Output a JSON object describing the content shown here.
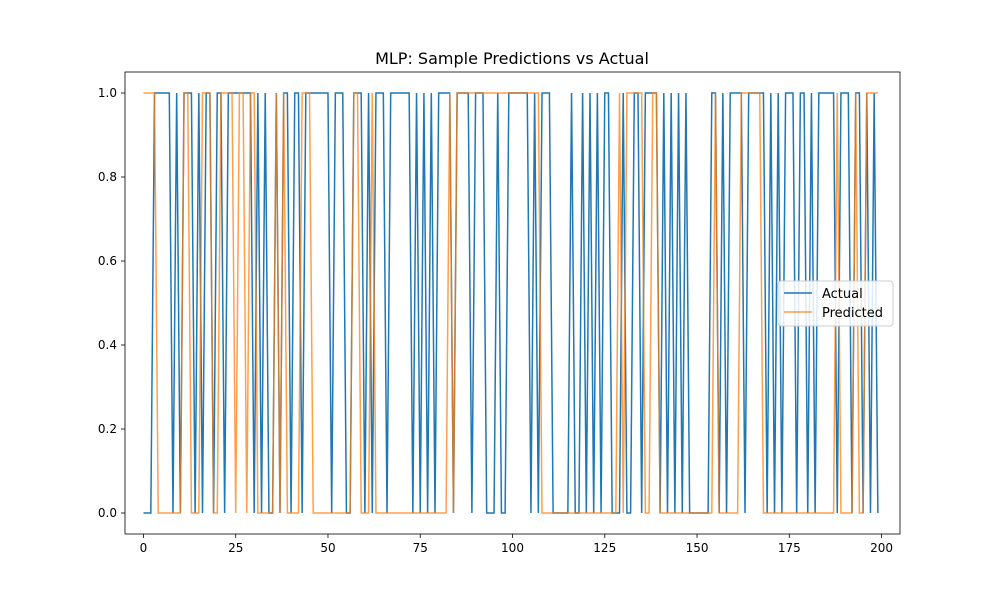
{
  "chart_data": {
    "type": "line",
    "title": "MLP: Sample Predictions vs Actual",
    "xlabel": "",
    "ylabel": "",
    "xlim": [
      -5,
      205
    ],
    "ylim": [
      -0.05,
      1.05
    ],
    "xticks": [
      0,
      25,
      50,
      75,
      100,
      125,
      150,
      175,
      200
    ],
    "yticks": [
      0.0,
      0.2,
      0.4,
      0.6,
      0.8,
      1.0
    ],
    "xtick_labels": [
      "0",
      "25",
      "50",
      "75",
      "100",
      "125",
      "150",
      "175",
      "200"
    ],
    "ytick_labels": [
      "0.0",
      "0.2",
      "0.4",
      "0.6",
      "0.8",
      "1.0"
    ],
    "grid": false,
    "legend": {
      "placement": "center-right",
      "entries": [
        "Actual",
        "Predicted"
      ]
    },
    "series": [
      {
        "name": "Actual",
        "color": "#1f77b4",
        "values": [
          0,
          0,
          0,
          1,
          1,
          1,
          1,
          1,
          0,
          1,
          0,
          1,
          1,
          1,
          0,
          1,
          0,
          1,
          1,
          0,
          1,
          1,
          0,
          1,
          1,
          1,
          1,
          1,
          1,
          1,
          0,
          1,
          0,
          1,
          0,
          0,
          1,
          0,
          1,
          1,
          0,
          1,
          1,
          0,
          1,
          1,
          1,
          1,
          1,
          1,
          1,
          0,
          1,
          1,
          1,
          0,
          0,
          1,
          1,
          1,
          0,
          1,
          0,
          1,
          1,
          1,
          0,
          1,
          1,
          1,
          1,
          1,
          1,
          0,
          1,
          0,
          1,
          0,
          1,
          0,
          1,
          1,
          1,
          1,
          0,
          1,
          1,
          1,
          1,
          0,
          1,
          1,
          1,
          0,
          0,
          0,
          1,
          0,
          0,
          1,
          1,
          1,
          1,
          1,
          1,
          0,
          1,
          0,
          1,
          1,
          1,
          0,
          0,
          0,
          0,
          0,
          1,
          0,
          0,
          1,
          0,
          1,
          0,
          1,
          0,
          1,
          1,
          0,
          0,
          0,
          1,
          0,
          0,
          1,
          1,
          0,
          1,
          1,
          1,
          1,
          0,
          1,
          0,
          1,
          0,
          1,
          0,
          1,
          0,
          0,
          0,
          0,
          0,
          0,
          1,
          1,
          0,
          1,
          0,
          1,
          1,
          1,
          1,
          0,
          1,
          1,
          1,
          1,
          1,
          0,
          1,
          0,
          1,
          0,
          1,
          1,
          1,
          0,
          1,
          1,
          0,
          1,
          0,
          1,
          1,
          1,
          1,
          1,
          0,
          1,
          1,
          1,
          0,
          1,
          1,
          0,
          1,
          0,
          1,
          0
        ]
      },
      {
        "name": "Predicted",
        "color": "#ff7f0e",
        "values": [
          1,
          1,
          1,
          1,
          0,
          0,
          0,
          0,
          0,
          0,
          0,
          1,
          1,
          0,
          0,
          0,
          1,
          1,
          1,
          0,
          0,
          1,
          1,
          1,
          1,
          0,
          1,
          1,
          0,
          1,
          1,
          0,
          0,
          0,
          0,
          0,
          1,
          0,
          1,
          0,
          0,
          0,
          0,
          1,
          1,
          1,
          0,
          0,
          0,
          0,
          0,
          0,
          0,
          0,
          0,
          0,
          0,
          1,
          1,
          0,
          0,
          0,
          1,
          0,
          0,
          0,
          0,
          0,
          0,
          0,
          0,
          0,
          0,
          0,
          0,
          0,
          0,
          0,
          0,
          0,
          0,
          0,
          0,
          1,
          0,
          1,
          1,
          1,
          1,
          1,
          1,
          1,
          1,
          1,
          1,
          1,
          1,
          1,
          1,
          1,
          1,
          1,
          1,
          1,
          1,
          1,
          1,
          1,
          0,
          0,
          0,
          0,
          0,
          0,
          0,
          0,
          0,
          0,
          0,
          0,
          0,
          0,
          0,
          0,
          0,
          0,
          0,
          0,
          0,
          1,
          0,
          1,
          1,
          1,
          1,
          1,
          0,
          0,
          1,
          1,
          0,
          0,
          0,
          0,
          0,
          0,
          0,
          0,
          0,
          0,
          0,
          0,
          0,
          0,
          0,
          1,
          0,
          0,
          0,
          0,
          0,
          0,
          1,
          1,
          1,
          1,
          1,
          1,
          0,
          0,
          0,
          0,
          0,
          0,
          0,
          0,
          0,
          0,
          0,
          0,
          0,
          0,
          0,
          0,
          0,
          0,
          0,
          0,
          1,
          0,
          0,
          0,
          0,
          1,
          0,
          0,
          1,
          1,
          1,
          1
        ]
      }
    ]
  }
}
